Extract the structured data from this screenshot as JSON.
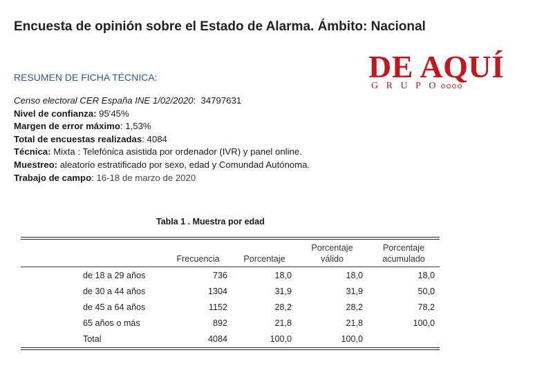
{
  "header": {
    "title": "Encuesta de opinión sobre el Estado de Alarma. Ámbito: Nacional"
  },
  "logo": {
    "main": "DE AQUÍ",
    "sub": "GRUPO"
  },
  "ficha": {
    "heading": "RESUMEN DE FICHA TÉCNICA:",
    "rows": [
      {
        "label": "Censo electoral  CER España INE 1/02/2020",
        "value": "34797631"
      },
      {
        "label": "Nivel de confianza",
        "value": "95'45%"
      },
      {
        "label": "Margen de error máximo",
        "value": "1,53%"
      },
      {
        "label": "Total de encuestas realizadas",
        "value": "4084"
      },
      {
        "label": "Técnica:",
        "value": "Mixta : Telefónica asistida por ordenador (IVR) y panel online."
      },
      {
        "label": "Muestreo:",
        "value": "aleatorio estratificado por sexo, edad y Comundad Autónoma."
      },
      {
        "label": "Trabajo de campo",
        "value": "16-18 de marzo de 2020"
      }
    ]
  },
  "table": {
    "caption": "Tabla 1 . Muestra por edad",
    "headers": [
      "",
      "Frecuencia",
      "Porcentaje",
      "Porcentaje válido",
      "Porcentaje acumulado"
    ],
    "header_lines": {
      "frecuencia": "Frecuencia",
      "porcentaje": "Porcentaje",
      "valido_1": "Porcentaje",
      "valido_2": "válido",
      "acumulado_1": "Porcentaje",
      "acumulado_2": "acumulado"
    },
    "rows": [
      [
        "de 18 a 29 años",
        "736",
        "18,0",
        "18,0",
        "18,0"
      ],
      [
        "de 30 a 44 años",
        "1304",
        "31,9",
        "31,9",
        "50,0"
      ],
      [
        "de 45 a 64 años",
        "1152",
        "28,2",
        "28,2",
        "78,2"
      ],
      [
        "65 años o más",
        "892",
        "21,8",
        "21,8",
        "100,0"
      ],
      [
        "Total",
        "4084",
        "100,0",
        "100,0",
        ""
      ]
    ]
  }
}
